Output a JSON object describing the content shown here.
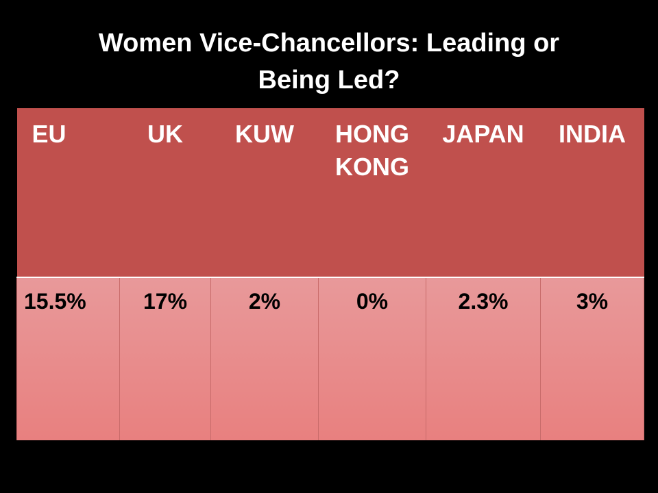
{
  "slide": {
    "title_line1": "Women Vice-Chancellors: Leading or",
    "title_line2": "Being Led?"
  },
  "table": {
    "headers": [
      "EU",
      "UK",
      "KUW",
      "HONG KONG",
      "JAPAN",
      "INDIA"
    ],
    "values": [
      "15.5%",
      "17%",
      "2%",
      "0%",
      "2.3%",
      "3%"
    ]
  },
  "colors": {
    "background": "#000000",
    "header_fill": "#c0504d",
    "cell_fill": "#e8999a",
    "title_text": "#ffffff"
  }
}
